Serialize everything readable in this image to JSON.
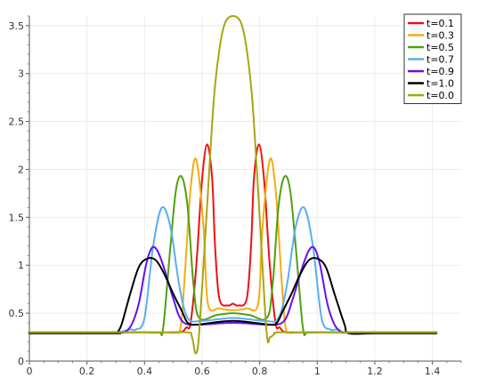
{
  "chart_data": {
    "type": "line",
    "title": "",
    "xlabel": "",
    "ylabel": "",
    "xlim": [
      0,
      1.5
    ],
    "ylim": [
      0,
      3.6
    ],
    "xticks": [
      0,
      0.2,
      0.4,
      0.6,
      0.8,
      1,
      1.2,
      1.4
    ],
    "xtick_labels": [
      "0",
      "0.2",
      "0.4",
      "0.6",
      "0.8",
      "1",
      "1.2",
      "1.4"
    ],
    "yticks": [
      0,
      0.5,
      1,
      1.5,
      2,
      2.5,
      3,
      3.5
    ],
    "ytick_labels": [
      "0",
      "0.5",
      "1",
      "1.5",
      "2",
      "2.5",
      "3",
      "3.5"
    ],
    "grid": true,
    "legend_position": "top-right",
    "series": [
      {
        "name": "t=0.1",
        "color": "#ee1111",
        "x": [
          0,
          0.2,
          0.3,
          0.42,
          0.52,
          0.545,
          0.56,
          0.58,
          0.6,
          0.618,
          0.635,
          0.645,
          0.66,
          0.69,
          0.707,
          0.725,
          0.755,
          0.77,
          0.78,
          0.797,
          0.815,
          0.835,
          0.855,
          0.87,
          0.895,
          1.0,
          1.2,
          1.414
        ],
        "y": [
          0.3,
          0.3,
          0.3,
          0.3,
          0.3,
          0.35,
          0.4,
          1.0,
          1.9,
          2.26,
          1.9,
          1.2,
          0.65,
          0.58,
          0.6,
          0.58,
          0.65,
          1.2,
          1.9,
          2.26,
          1.9,
          1.0,
          0.4,
          0.35,
          0.3,
          0.3,
          0.3,
          0.3
        ]
      },
      {
        "name": "t=0.3",
        "color": "#f5ac0f",
        "x": [
          0,
          0.2,
          0.4,
          0.5,
          0.525,
          0.54,
          0.56,
          0.58,
          0.605,
          0.62,
          0.66,
          0.707,
          0.755,
          0.795,
          0.81,
          0.835,
          0.855,
          0.875,
          0.89,
          0.915,
          1.0,
          1.2,
          1.414
        ],
        "y": [
          0.3,
          0.3,
          0.3,
          0.3,
          0.35,
          0.9,
          1.8,
          2.1,
          1.4,
          0.6,
          0.55,
          0.53,
          0.55,
          0.6,
          1.4,
          2.1,
          1.8,
          0.9,
          0.35,
          0.3,
          0.3,
          0.3,
          0.3
        ]
      },
      {
        "name": "t=0.5",
        "color": "#4fa010",
        "x": [
          0,
          0.2,
          0.4,
          0.45,
          0.465,
          0.49,
          0.51,
          0.53,
          0.55,
          0.57,
          0.59,
          0.65,
          0.707,
          0.765,
          0.825,
          0.845,
          0.865,
          0.885,
          0.905,
          0.925,
          0.95,
          0.965,
          1.0,
          1.2,
          1.414
        ],
        "y": [
          0.3,
          0.3,
          0.3,
          0.3,
          0.35,
          1.2,
          1.8,
          1.92,
          1.6,
          0.8,
          0.45,
          0.48,
          0.5,
          0.48,
          0.45,
          0.8,
          1.6,
          1.92,
          1.8,
          1.2,
          0.35,
          0.3,
          0.3,
          0.3,
          0.3
        ]
      },
      {
        "name": "t=0.7",
        "color": "#5aaef0",
        "x": [
          0,
          0.2,
          0.3,
          0.35,
          0.37,
          0.4,
          0.43,
          0.46,
          0.49,
          0.52,
          0.55,
          0.6,
          0.707,
          0.815,
          0.865,
          0.895,
          0.925,
          0.955,
          0.985,
          1.015,
          1.045,
          1.07,
          1.1,
          1.2,
          1.414
        ],
        "y": [
          0.3,
          0.3,
          0.3,
          0.33,
          0.33,
          0.45,
          1.2,
          1.6,
          1.4,
          0.8,
          0.45,
          0.42,
          0.45,
          0.42,
          0.45,
          0.8,
          1.4,
          1.6,
          1.2,
          0.45,
          0.33,
          0.33,
          0.3,
          0.3,
          0.3
        ]
      },
      {
        "name": "t=0.9",
        "color": "#6611ee",
        "x": [
          0,
          0.2,
          0.3,
          0.33,
          0.355,
          0.38,
          0.405,
          0.425,
          0.445,
          0.47,
          0.5,
          0.53,
          0.58,
          0.707,
          0.835,
          0.885,
          0.915,
          0.945,
          0.97,
          0.99,
          1.01,
          1.035,
          1.06,
          1.085,
          1.1,
          1.2,
          1.414
        ],
        "y": [
          0.3,
          0.3,
          0.3,
          0.3,
          0.38,
          0.6,
          1.0,
          1.18,
          1.15,
          0.95,
          0.65,
          0.42,
          0.38,
          0.4,
          0.38,
          0.42,
          0.65,
          0.95,
          1.15,
          1.18,
          1.0,
          0.6,
          0.38,
          0.3,
          0.3,
          0.3,
          0.3
        ]
      },
      {
        "name": "t=1.0",
        "color": "#000000",
        "x": [
          0,
          0.1,
          0.3,
          0.305,
          0.32,
          0.35,
          0.38,
          0.41,
          0.44,
          0.47,
          0.5,
          0.53,
          0.55,
          0.58,
          0.707,
          0.835,
          0.86,
          0.88,
          0.91,
          0.94,
          0.97,
          1.0,
          1.03,
          1.06,
          1.095,
          1.11,
          1.2,
          1.414
        ],
        "y": [
          0.29,
          0.29,
          0.29,
          0.3,
          0.38,
          0.7,
          0.98,
          1.07,
          1.05,
          0.9,
          0.7,
          0.52,
          0.4,
          0.38,
          0.42,
          0.38,
          0.4,
          0.52,
          0.7,
          0.9,
          1.05,
          1.07,
          0.98,
          0.7,
          0.38,
          0.29,
          0.29,
          0.29
        ]
      },
      {
        "name": "t=0.0",
        "color": "#a6a612",
        "x": [
          0,
          0.2,
          0.45,
          0.55,
          0.565,
          0.578,
          0.59,
          0.615,
          0.64,
          0.66,
          0.68,
          0.707,
          0.735,
          0.755,
          0.775,
          0.8,
          0.824,
          0.836,
          0.85,
          0.865,
          1.0,
          1.2,
          1.414
        ],
        "y": [
          0.3,
          0.3,
          0.3,
          0.3,
          0.25,
          0.08,
          0.3,
          1.5,
          2.7,
          3.25,
          3.53,
          3.6,
          3.53,
          3.25,
          2.7,
          1.5,
          0.3,
          0.25,
          0.28,
          0.3,
          0.3,
          0.3,
          0.3
        ]
      }
    ]
  }
}
